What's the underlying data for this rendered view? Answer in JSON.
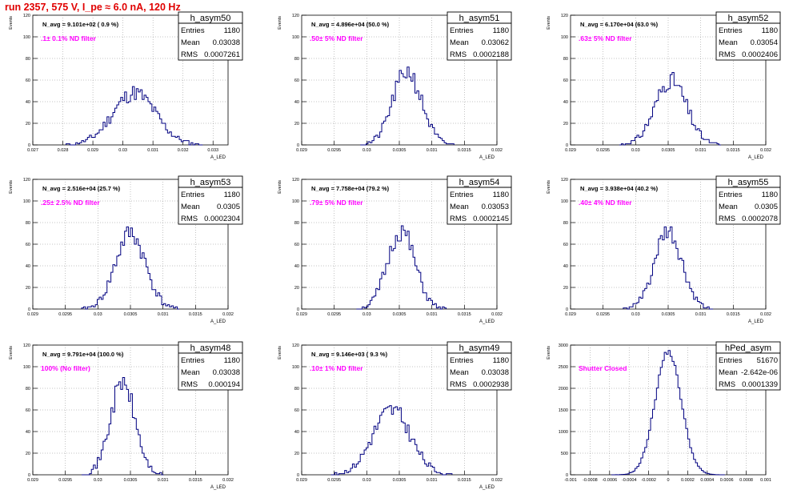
{
  "title": "run 2357,   575 V, I_pe ≈ 6.0 nA, 120 Hz",
  "colors": {
    "title": "#e00000",
    "histogram": "#000080",
    "annotation": "#ff00ff",
    "grid": "#888888"
  },
  "chart_data": [
    {
      "type": "histogram",
      "name": "h_asym50",
      "navg": "N_avg = 9.101e+02 ( 0.9 %)",
      "label": ".1± 0.1% ND filter",
      "stats": {
        "Entries": "1180",
        "Mean": "0.03038",
        "RMS": "0.0007261"
      },
      "xlim": [
        0.027,
        0.0335
      ],
      "ylim": [
        0,
        120
      ],
      "xticks": [
        "0.027",
        "0.028",
        "0.029",
        "0.03",
        "0.031",
        "0.032",
        "0.033"
      ],
      "yticks": [
        "0",
        "20",
        "40",
        "60",
        "80",
        "100",
        "120"
      ],
      "xlabel": "A_LED",
      "ylabel": "Events",
      "center": 0.03038,
      "sigma": 0.00072,
      "peak": 48,
      "nbins": 100,
      "seed": 11
    },
    {
      "type": "histogram",
      "name": "h_asym51",
      "navg": "N_avg = 4.896e+04 (50.0 %)",
      "label": ".50± 5% ND filter",
      "stats": {
        "Entries": "1180",
        "Mean": "0.03062",
        "RMS": "0.0002188"
      },
      "xlim": [
        0.029,
        0.032
      ],
      "ylim": [
        0,
        120
      ],
      "xticks": [
        "0.029",
        "0.0295",
        "0.03",
        "0.0305",
        "0.031",
        "0.0315",
        "0.032"
      ],
      "yticks": [
        "0",
        "20",
        "40",
        "60",
        "80",
        "100",
        "120"
      ],
      "xlabel": "A_LED",
      "ylabel": "Events",
      "center": 0.03062,
      "sigma": 0.00022,
      "peak": 68,
      "nbins": 100,
      "seed": 21
    },
    {
      "type": "histogram",
      "name": "h_asym52",
      "navg": "N_avg = 6.170e+04 (63.0 %)",
      "label": ".63± 5% ND filter",
      "stats": {
        "Entries": "1180",
        "Mean": "0.03054",
        "RMS": "0.0002406"
      },
      "xlim": [
        0.029,
        0.032
      ],
      "ylim": [
        0,
        120
      ],
      "xticks": [
        "0.029",
        "0.0295",
        "0.03",
        "0.0305",
        "0.031",
        "0.0315",
        "0.032"
      ],
      "yticks": [
        "0",
        "20",
        "40",
        "60",
        "80",
        "100",
        "120"
      ],
      "xlabel": "A_LED",
      "ylabel": "Events",
      "center": 0.03054,
      "sigma": 0.00024,
      "peak": 60,
      "nbins": 100,
      "seed": 31
    },
    {
      "type": "histogram",
      "name": "h_asym53",
      "navg": "N_avg = 2.516e+04 (25.7 %)",
      "label": ".25± 2.5% ND filter",
      "stats": {
        "Entries": "1180",
        "Mean": "0.0305",
        "RMS": "0.0002304"
      },
      "xlim": [
        0.029,
        0.032
      ],
      "ylim": [
        0,
        120
      ],
      "xticks": [
        "0.029",
        "0.0295",
        "0.03",
        "0.0305",
        "0.031",
        "0.0315",
        "0.032"
      ],
      "yticks": [
        "0",
        "20",
        "40",
        "60",
        "80",
        "100",
        "120"
      ],
      "xlabel": "A_LED",
      "ylabel": "Events",
      "center": 0.0305,
      "sigma": 0.00023,
      "peak": 70,
      "nbins": 100,
      "seed": 41
    },
    {
      "type": "histogram",
      "name": "h_asym54",
      "navg": "N_avg = 7.758e+04 (79.2 %)",
      "label": ".79± 5% ND filter",
      "stats": {
        "Entries": "1180",
        "Mean": "0.03053",
        "RMS": "0.0002145"
      },
      "xlim": [
        0.029,
        0.032
      ],
      "ylim": [
        0,
        120
      ],
      "xticks": [
        "0.029",
        "0.0295",
        "0.03",
        "0.0305",
        "0.031",
        "0.0315",
        "0.032"
      ],
      "yticks": [
        "0",
        "20",
        "40",
        "60",
        "80",
        "100",
        "120"
      ],
      "xlabel": "A_LED",
      "ylabel": "Events",
      "center": 0.03053,
      "sigma": 0.00021,
      "peak": 72,
      "nbins": 100,
      "seed": 51
    },
    {
      "type": "histogram",
      "name": "h_asym55",
      "navg": "N_avg = 3.938e+04 (40.2 %)",
      "label": ".40± 4% ND filter",
      "stats": {
        "Entries": "1180",
        "Mean": "0.0305",
        "RMS": "0.0002078"
      },
      "xlim": [
        0.029,
        0.032
      ],
      "ylim": [
        0,
        120
      ],
      "xticks": [
        "0.029",
        "0.0295",
        "0.03",
        "0.0305",
        "0.031",
        "0.0315",
        "0.032"
      ],
      "yticks": [
        "0",
        "20",
        "40",
        "60",
        "80",
        "100",
        "120"
      ],
      "xlabel": "A_LED",
      "ylabel": "Events",
      "center": 0.0305,
      "sigma": 0.00021,
      "peak": 70,
      "nbins": 100,
      "seed": 61
    },
    {
      "type": "histogram",
      "name": "h_asym48",
      "navg": "N_avg = 9.791e+04 (100.0 %)",
      "label": "100% (No filter)",
      "stats": {
        "Entries": "1180",
        "Mean": "0.03038",
        "RMS": "0.000194"
      },
      "xlim": [
        0.029,
        0.032
      ],
      "ylim": [
        0,
        120
      ],
      "xticks": [
        "0.029",
        "0.0295",
        "0.03",
        "0.0305",
        "0.031",
        "0.0315",
        "0.032"
      ],
      "yticks": [
        "0",
        "20",
        "40",
        "60",
        "80",
        "100",
        "120"
      ],
      "xlabel": "A_LED",
      "ylabel": "Events",
      "center": 0.03038,
      "sigma": 0.00019,
      "peak": 85,
      "nbins": 100,
      "seed": 71
    },
    {
      "type": "histogram",
      "name": "h_asym49",
      "navg": "N_avg = 9.146e+03 ( 9.3 %)",
      "label": ".10± 1% ND filter",
      "stats": {
        "Entries": "1180",
        "Mean": "0.03038",
        "RMS": "0.0002938"
      },
      "xlim": [
        0.029,
        0.032
      ],
      "ylim": [
        0,
        120
      ],
      "xticks": [
        "0.029",
        "0.0295",
        "0.03",
        "0.0305",
        "0.031",
        "0.0315",
        "0.032"
      ],
      "yticks": [
        "0",
        "20",
        "40",
        "60",
        "80",
        "100",
        "120"
      ],
      "xlabel": "A_LED",
      "ylabel": "Events",
      "center": 0.03038,
      "sigma": 0.00029,
      "peak": 60,
      "nbins": 100,
      "seed": 81
    },
    {
      "type": "histogram",
      "name": "hPed_asym",
      "navg": "",
      "label": "Shutter Closed",
      "stats": {
        "Entries": "51670",
        "Mean": "-2.642e-06",
        "RMS": "0.0001339"
      },
      "xlim": [
        -0.001,
        0.001
      ],
      "ylim": [
        0,
        3000
      ],
      "xticks": [
        "-0.001",
        "-0.0008",
        "-0.0006",
        "-0.0004",
        "-0.0002",
        "0",
        "0.0002",
        "0.0004",
        "0.0006",
        "0.0008",
        "0.001"
      ],
      "yticks": [
        "0",
        "500",
        "1000",
        "1500",
        "2000",
        "2500",
        "3000"
      ],
      "xlabel": "",
      "ylabel": "Events",
      "center": 0,
      "sigma": 0.000134,
      "peak": 2850,
      "nbins": 100,
      "seed": 91
    }
  ]
}
